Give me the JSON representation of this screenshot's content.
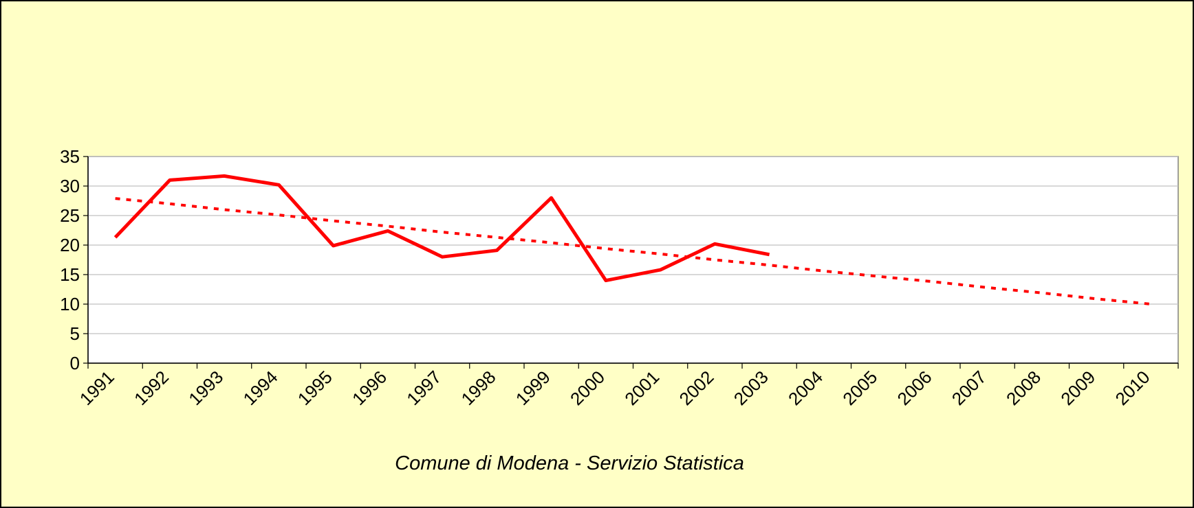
{
  "chart_data": {
    "type": "line",
    "categories": [
      "1991",
      "1992",
      "1993",
      "1994",
      "1995",
      "1996",
      "1997",
      "1998",
      "1999",
      "2000",
      "2001",
      "2002",
      "2003",
      "2004",
      "2005",
      "2006",
      "2007",
      "2008",
      "2009",
      "2010"
    ],
    "series": [
      {
        "color": "#ff0000",
        "line_style": "solid",
        "values": [
          21.3,
          31,
          31.7,
          30.2,
          19.9,
          22.4,
          18,
          19.1,
          28,
          14,
          15.8,
          20.2,
          18.4,
          null,
          null,
          null,
          null,
          null,
          null,
          null
        ]
      },
      {
        "color": "#ff0000",
        "line_style": "dotted",
        "values": [
          27.9,
          27.0,
          26.0,
          25.1,
          24.1,
          23.2,
          22.2,
          21.3,
          20.4,
          19.4,
          18.5,
          17.5,
          16.6,
          15.6,
          14.7,
          13.8,
          12.8,
          11.9,
          10.9,
          10.0
        ]
      }
    ],
    "ylim": [
      0,
      35
    ],
    "yticks": [
      0,
      5,
      10,
      15,
      20,
      25,
      30,
      35
    ],
    "grid": true,
    "annotation": "Comune di Modena - Servizio Statistica"
  }
}
